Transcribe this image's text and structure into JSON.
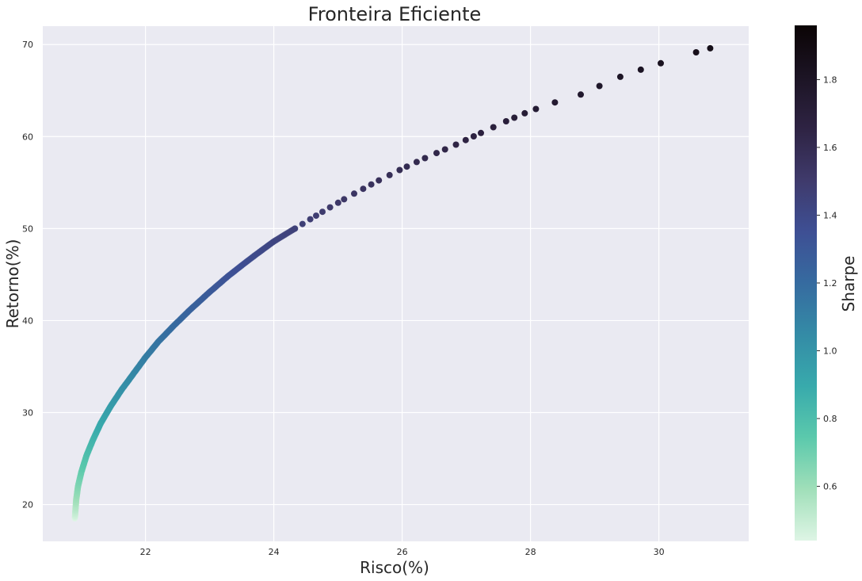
{
  "chart_data": {
    "type": "scatter",
    "title": "Fronteira Eficiente",
    "xlabel": "Risco(%)",
    "ylabel": "Retorno(%)",
    "xlim": [
      20.4,
      31.4
    ],
    "ylim": [
      16,
      72
    ],
    "xticks": [
      "22",
      "24",
      "26",
      "28",
      "30"
    ],
    "yticks": [
      "20",
      "30",
      "40",
      "50",
      "60",
      "70"
    ],
    "grid": true,
    "colorbar": {
      "label": "Sharpe",
      "range": [
        0.44,
        1.96
      ],
      "ticks": [
        "0.6",
        "0.8",
        "1.0",
        "1.2",
        "1.4",
        "1.6",
        "1.8"
      ],
      "colormap": "mako_r",
      "colors": [
        "#def5e5",
        "#a0dfb9",
        "#5bc9ac",
        "#38aaac",
        "#348ba6",
        "#366ba0",
        "#3e4f94",
        "#3f3a6b",
        "#2e2343",
        "#1c1424",
        "#0b0405"
      ]
    },
    "series": [
      {
        "risk_min": 20.9,
        "risk_max": 30.8,
        "return_min": 18.5,
        "return_max": 69.6,
        "points": [
          [
            20.9,
            18.5
          ],
          [
            20.92,
            20.5
          ],
          [
            20.95,
            22.0
          ],
          [
            21.0,
            23.5
          ],
          [
            21.08,
            25.3
          ],
          [
            21.18,
            27.0
          ],
          [
            21.3,
            28.8
          ],
          [
            21.45,
            30.6
          ],
          [
            21.62,
            32.4
          ],
          [
            21.8,
            34.1
          ],
          [
            22.0,
            36.0
          ],
          [
            22.2,
            37.7
          ],
          [
            22.45,
            39.5
          ],
          [
            22.7,
            41.2
          ],
          [
            23.0,
            43.1
          ],
          [
            23.3,
            44.9
          ],
          [
            23.65,
            46.8
          ],
          [
            24.0,
            48.6
          ],
          [
            24.4,
            50.3
          ],
          [
            24.8,
            52.0
          ],
          [
            25.2,
            53.6
          ],
          [
            25.6,
            55.1
          ],
          [
            26.0,
            56.5
          ],
          [
            26.4,
            57.8
          ],
          [
            26.8,
            59.0
          ],
          [
            27.2,
            60.3
          ],
          [
            27.6,
            61.6
          ],
          [
            28.0,
            62.8
          ],
          [
            28.5,
            64.0
          ],
          [
            28.9,
            64.8
          ],
          [
            29.2,
            66.0
          ],
          [
            29.6,
            67.0
          ],
          [
            30.0,
            67.9
          ],
          [
            30.3,
            68.6
          ],
          [
            30.8,
            69.6
          ]
        ]
      }
    ]
  }
}
